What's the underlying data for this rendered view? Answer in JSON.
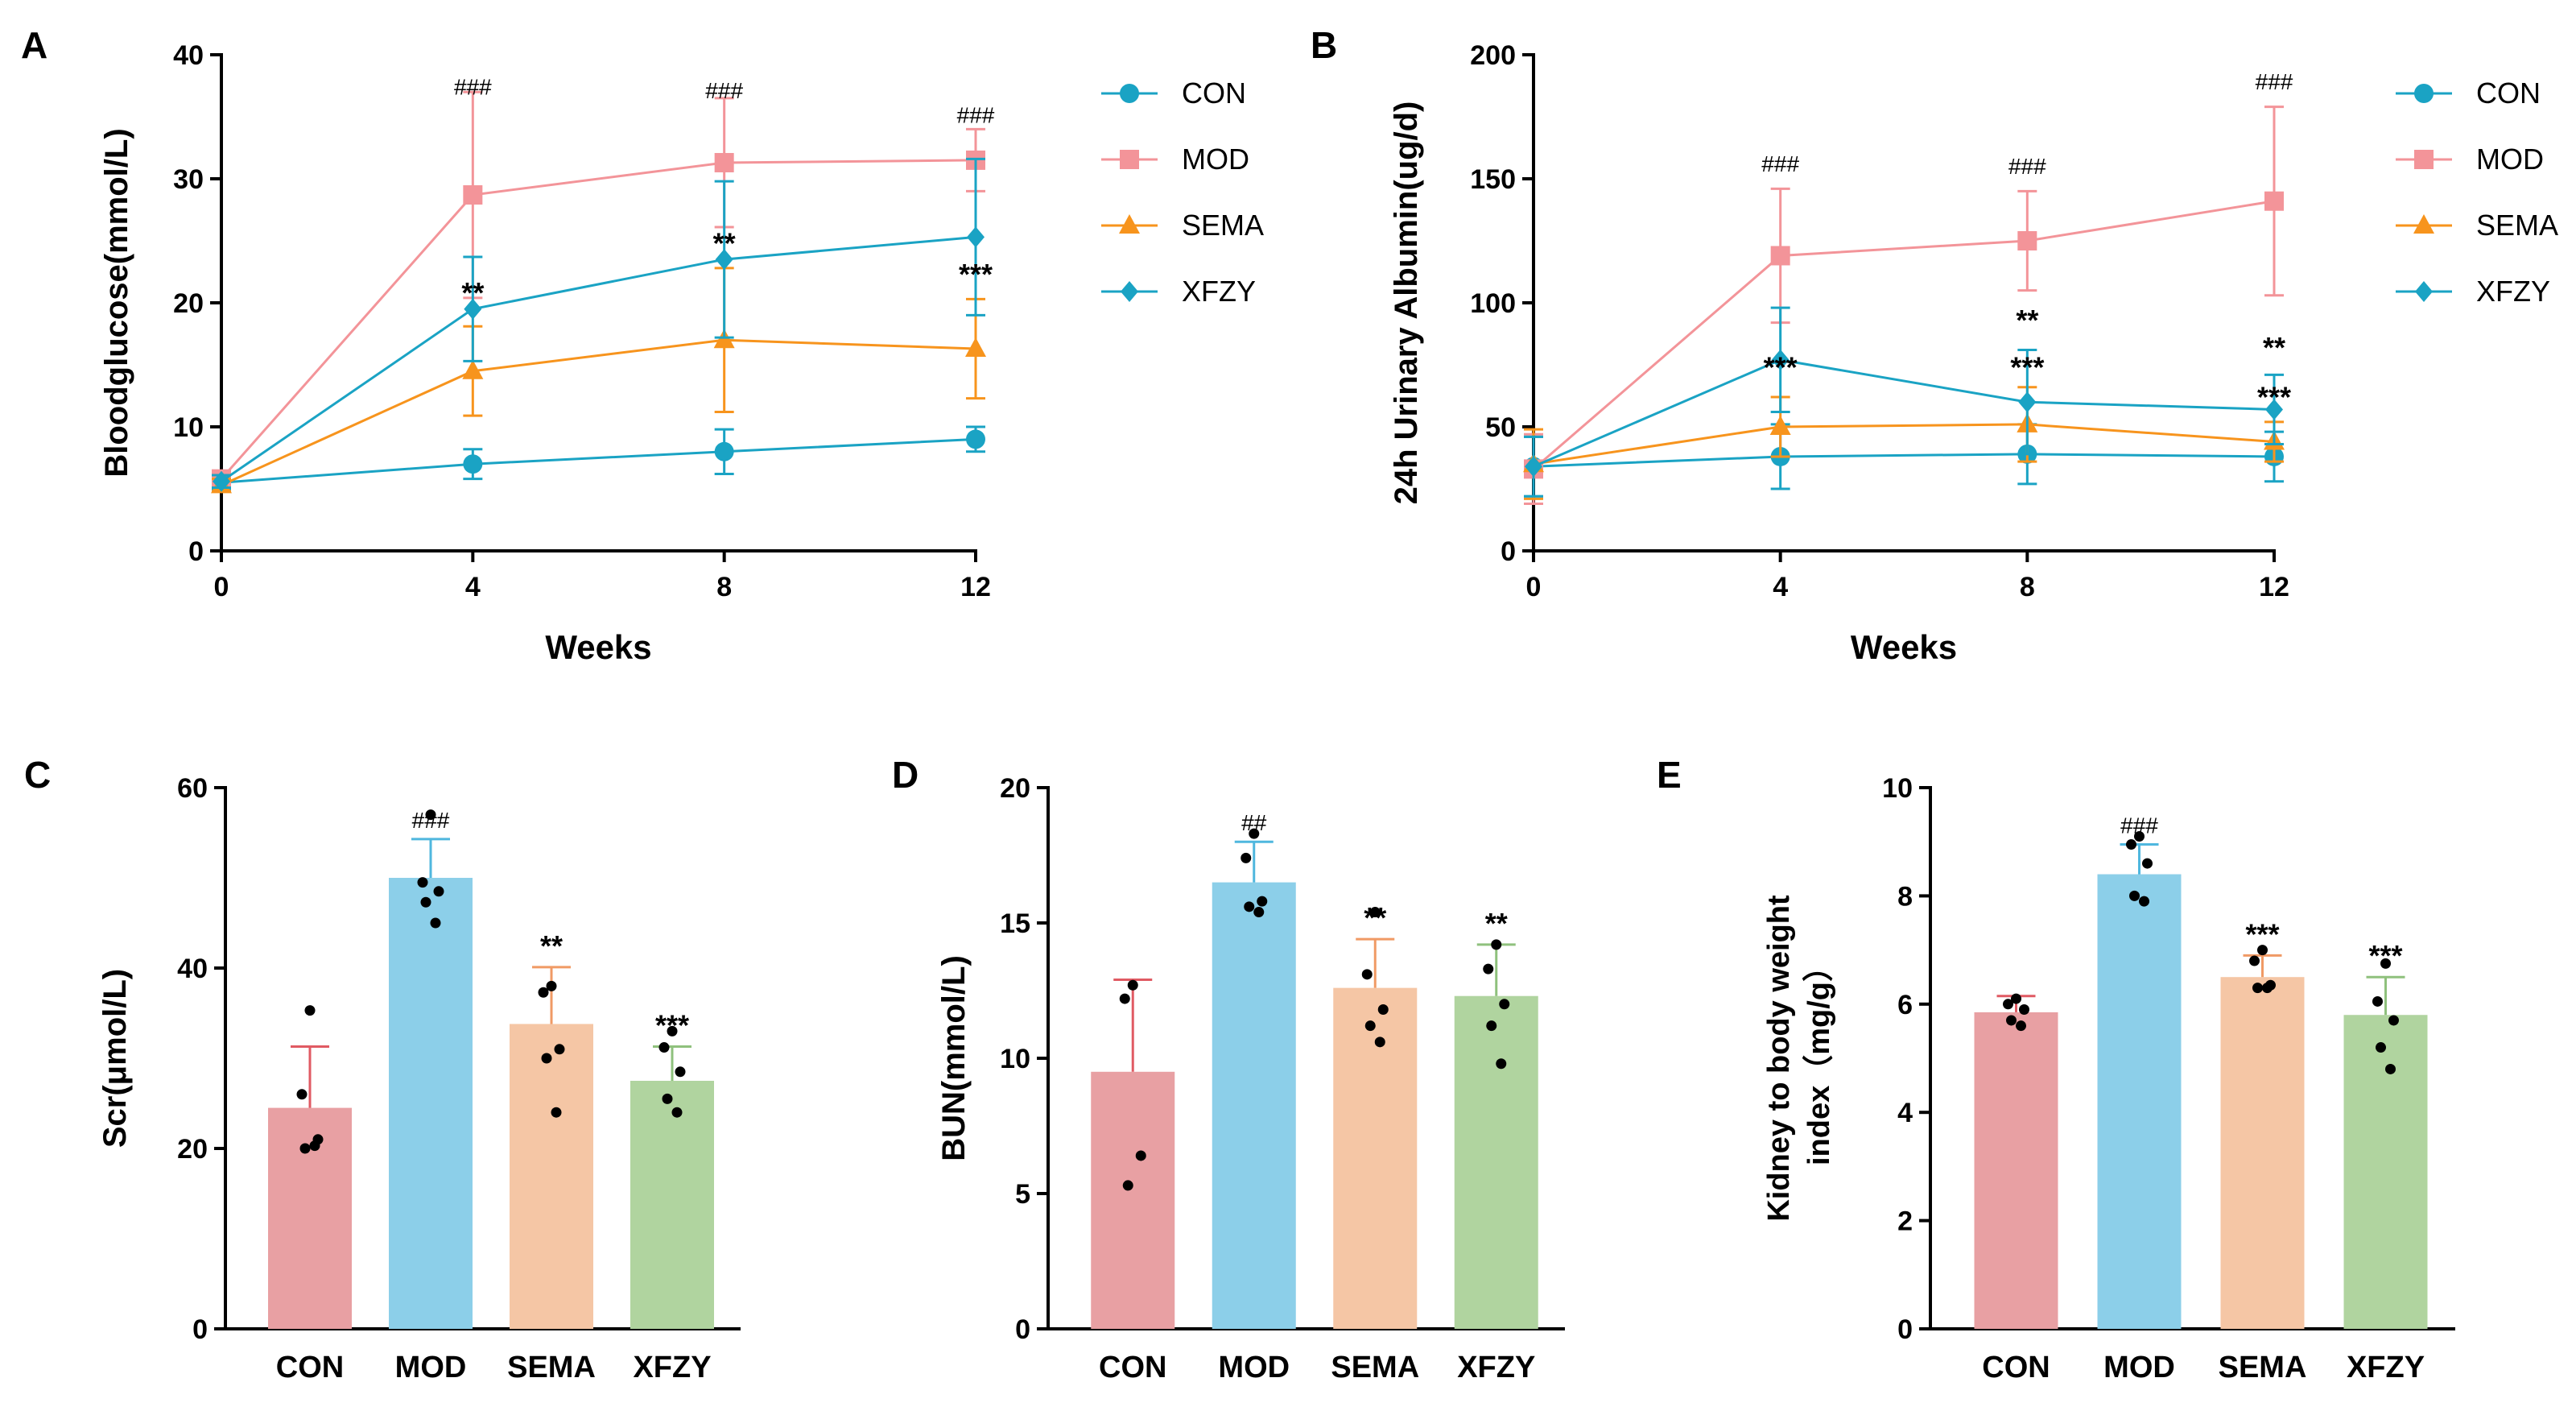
{
  "colors": {
    "CON_line": "#1aa3c4",
    "MOD_line": "#f39499",
    "SEMA_line": "#f7941d",
    "XFZY_line": "#1aa3c4",
    "CON_bar": "#e8a0a3",
    "MOD_bar": "#8ccfe9",
    "SEMA_bar": "#f5c6a5",
    "XFZY_bar": "#b0d49f",
    "CON_err": "#e05a63",
    "MOD_err": "#4fb7de",
    "SEMA_err": "#f09a65",
    "XFZY_err": "#8fc17d",
    "dots": "#000000"
  },
  "chart_data": [
    {
      "panel": "A",
      "type": "line",
      "xlabel": "Weeks",
      "ylabel": "Bloodglucose(mmol/L)",
      "x": [
        0,
        4,
        8,
        12
      ],
      "xticks": [
        "0",
        "4",
        "8",
        "12"
      ],
      "ylim": [
        0,
        40
      ],
      "yticks": [
        "0",
        "10",
        "20",
        "30",
        "40"
      ],
      "legend_position": "right",
      "series": [
        {
          "name": "CON",
          "marker": "circle",
          "values": [
            5.5,
            7.0,
            8.0,
            9.0
          ],
          "err": [
            0.5,
            1.2,
            1.8,
            1.0
          ]
        },
        {
          "name": "MOD",
          "marker": "square",
          "values": [
            5.8,
            28.7,
            31.3,
            31.5
          ],
          "err": [
            0.6,
            8.3,
            5.2,
            2.5
          ]
        },
        {
          "name": "SEMA",
          "marker": "triangle",
          "values": [
            5.3,
            14.5,
            17.0,
            16.3
          ],
          "err": [
            0.5,
            3.6,
            5.8,
            4.0
          ]
        },
        {
          "name": "XFZY",
          "marker": "diamond",
          "values": [
            5.6,
            19.5,
            23.5,
            25.3
          ],
          "err": [
            0.5,
            4.2,
            6.3,
            6.3
          ]
        }
      ],
      "annotations": [
        {
          "x": 4,
          "y": 36.8,
          "text": "###"
        },
        {
          "x": 8,
          "y": 36.5,
          "text": "###"
        },
        {
          "x": 12,
          "y": 34.5,
          "text": "###"
        },
        {
          "x": 4,
          "y": 20.0,
          "text": "**"
        },
        {
          "x": 8,
          "y": 24.0,
          "text": "**"
        },
        {
          "x": 12,
          "y": 21.5,
          "text": "***"
        }
      ]
    },
    {
      "panel": "B",
      "type": "line",
      "xlabel": "Weeks",
      "ylabel": "24h Urinary Albumin(ug/d)",
      "x": [
        0,
        4,
        8,
        12
      ],
      "xticks": [
        "0",
        "4",
        "8",
        "12"
      ],
      "ylim": [
        0,
        200
      ],
      "yticks": [
        "0",
        "50",
        "100",
        "150",
        "200"
      ],
      "legend_position": "right",
      "series": [
        {
          "name": "CON",
          "marker": "circle",
          "values": [
            34,
            38,
            39,
            38
          ],
          "err": [
            12,
            13,
            12,
            10
          ]
        },
        {
          "name": "MOD",
          "marker": "square",
          "values": [
            33,
            119,
            125,
            141
          ],
          "err": [
            14,
            27,
            20,
            38
          ]
        },
        {
          "name": "SEMA",
          "marker": "triangle",
          "values": [
            35,
            50,
            51,
            44
          ],
          "err": [
            14,
            12,
            15,
            8
          ]
        },
        {
          "name": "XFZY",
          "marker": "diamond",
          "values": [
            34,
            77,
            60,
            57
          ],
          "err": [
            12,
            21,
            21,
            14
          ]
        }
      ],
      "annotations": [
        {
          "x": 4,
          "y": 153,
          "text": "###"
        },
        {
          "x": 8,
          "y": 152,
          "text": "###"
        },
        {
          "x": 12,
          "y": 186,
          "text": "###"
        },
        {
          "x": 4,
          "y": 70,
          "text": "***"
        },
        {
          "x": 8,
          "y": 89,
          "text": "**"
        },
        {
          "x": 8,
          "y": 70,
          "text": "***"
        },
        {
          "x": 12,
          "y": 78,
          "text": "**"
        },
        {
          "x": 12,
          "y": 58,
          "text": "***"
        }
      ]
    },
    {
      "panel": "C",
      "type": "bar",
      "ylabel": "Scr(μmol/L)",
      "categories": [
        "CON",
        "MOD",
        "SEMA",
        "XFZY"
      ],
      "values": [
        24.5,
        50.0,
        33.8,
        27.5
      ],
      "err": [
        6.8,
        4.3,
        6.3,
        3.8
      ],
      "points": [
        [
          35.3,
          26.0,
          21.0,
          20.0,
          20.3
        ],
        [
          57.0,
          49.5,
          48.5,
          47.3,
          45.0
        ],
        [
          38.0,
          37.3,
          31.0,
          30.0,
          24.0
        ],
        [
          33.0,
          31.2,
          28.5,
          25.5,
          24.0
        ]
      ],
      "ylim": [
        0,
        60
      ],
      "yticks": [
        "0",
        "20",
        "40",
        "60"
      ],
      "annotations": [
        "",
        "###",
        "**",
        "***"
      ]
    },
    {
      "panel": "D",
      "type": "bar",
      "ylabel": "BUN(mmol/L)",
      "categories": [
        "CON",
        "MOD",
        "SEMA",
        "XFZY"
      ],
      "values": [
        9.5,
        16.5,
        12.6,
        12.3
      ],
      "err": [
        3.4,
        1.5,
        1.8,
        1.9
      ],
      "points": [
        [
          12.7,
          12.2,
          6.4,
          5.3
        ],
        [
          18.3,
          17.4,
          15.8,
          15.6,
          15.4
        ],
        [
          15.4,
          13.1,
          11.8,
          11.2,
          10.6
        ],
        [
          14.2,
          13.3,
          12.0,
          11.2,
          9.8
        ]
      ],
      "ylim": [
        0,
        20
      ],
      "yticks": [
        "0",
        "5",
        "10",
        "15",
        "20"
      ],
      "annotations": [
        "",
        "##",
        "**",
        "**"
      ]
    },
    {
      "panel": "E",
      "type": "bar",
      "ylabel": "Kidney to body weight index（mg/g）",
      "categories": [
        "CON",
        "MOD",
        "SEMA",
        "XFZY"
      ],
      "values": [
        5.85,
        8.4,
        6.5,
        5.8
      ],
      "err": [
        0.3,
        0.55,
        0.4,
        0.7
      ],
      "points": [
        [
          6.1,
          6.0,
          5.9,
          5.7,
          5.6
        ],
        [
          9.1,
          8.95,
          8.6,
          8.0,
          7.9
        ],
        [
          7.0,
          6.8,
          6.35,
          6.3,
          6.3
        ],
        [
          6.75,
          6.05,
          5.7,
          5.2,
          4.8
        ]
      ],
      "ylim": [
        0,
        10
      ],
      "yticks": [
        "0",
        "2",
        "4",
        "6",
        "8",
        "10"
      ],
      "annotations": [
        "",
        "###",
        "***",
        "***"
      ]
    }
  ],
  "panel_letters": [
    "A",
    "B",
    "C",
    "D",
    "E"
  ]
}
